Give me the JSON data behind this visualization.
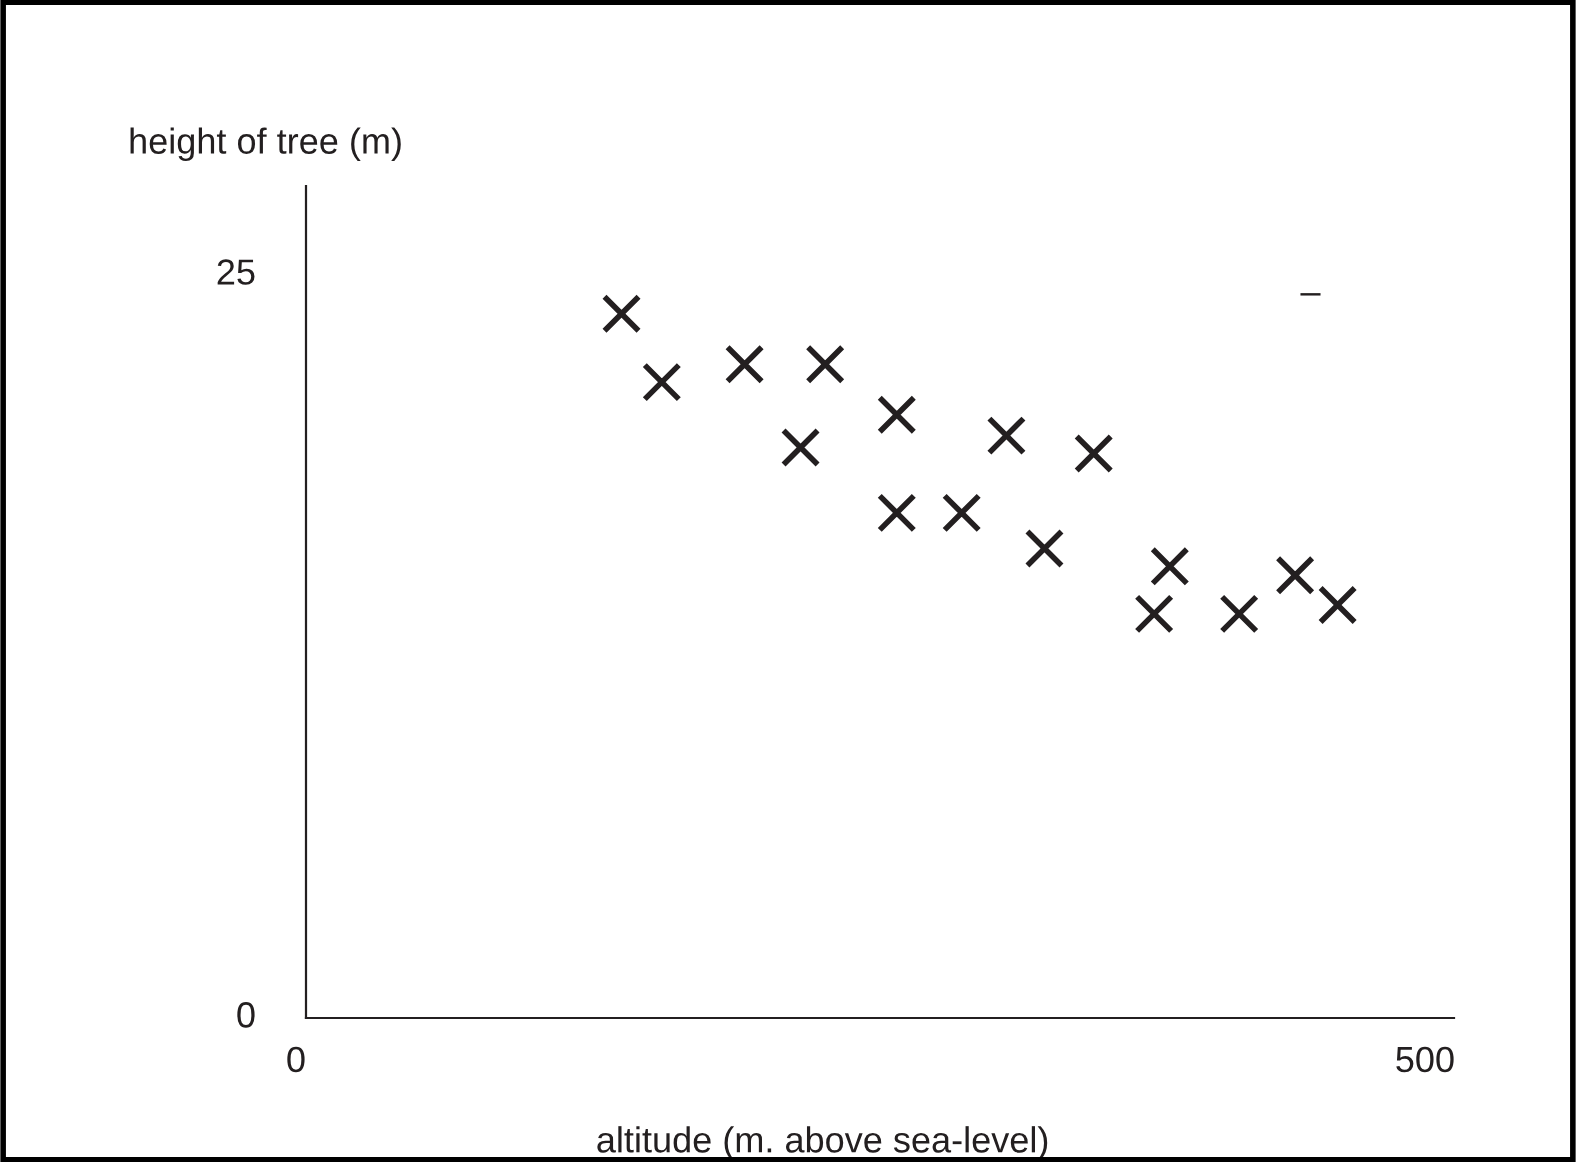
{
  "chart_data": {
    "type": "scatter",
    "xlabel": "altitude (m. above sea-level)",
    "ylabel": "height of tree (m)",
    "xlim": [
      0,
      513
    ],
    "ylim": [
      0,
      28
    ],
    "xticks": [
      0,
      500
    ],
    "yticks": [
      0,
      25
    ],
    "marker": "cross",
    "grid": false,
    "legend": false,
    "annotations": [
      "–"
    ],
    "series": [
      {
        "color": "#231f20",
        "x": [
          141,
          159,
          196,
          221,
          232,
          264,
          264,
          293,
          313,
          330,
          352,
          379,
          386,
          417,
          442,
          461
        ],
        "values": [
          23.7,
          21.4,
          22.0,
          19.2,
          22.0,
          20.3,
          17.0,
          17.0,
          19.6,
          15.8,
          19.0,
          13.6,
          15.2,
          13.6,
          14.9,
          13.9
        ]
      }
    ]
  }
}
